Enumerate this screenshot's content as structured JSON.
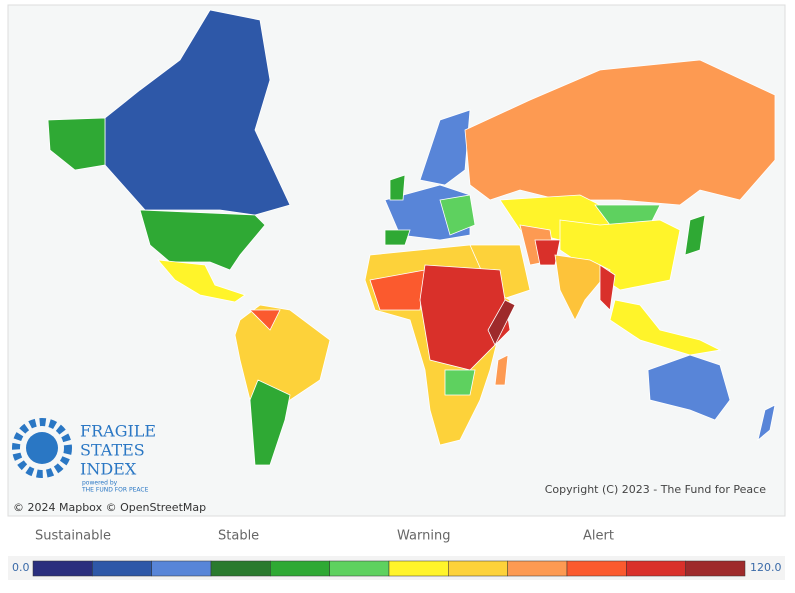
{
  "map": {
    "attribution": "© 2024 Mapbox © OpenStreetMap",
    "copyright": "Copyright (C) 2023 - The Fund for Peace"
  },
  "logo": {
    "lines": [
      "FRAGILE",
      "STATES",
      "INDEX"
    ],
    "powered": "powered by",
    "org": "THE FUND FOR PEACE"
  },
  "legend": {
    "labels": [
      "Sustainable",
      "Stable",
      "Warning",
      "Alert"
    ],
    "scale": [
      "0.0",
      "120.0"
    ],
    "colors": [
      "#2b2f7e",
      "#2e58a8",
      "#5885d8",
      "#2a7a2e",
      "#2fa934",
      "#5ed15f",
      "#fff42a",
      "#fdd23a",
      "#fd9a52",
      "#fb5a2e",
      "#d9302a",
      "#9e2a2b"
    ]
  }
}
